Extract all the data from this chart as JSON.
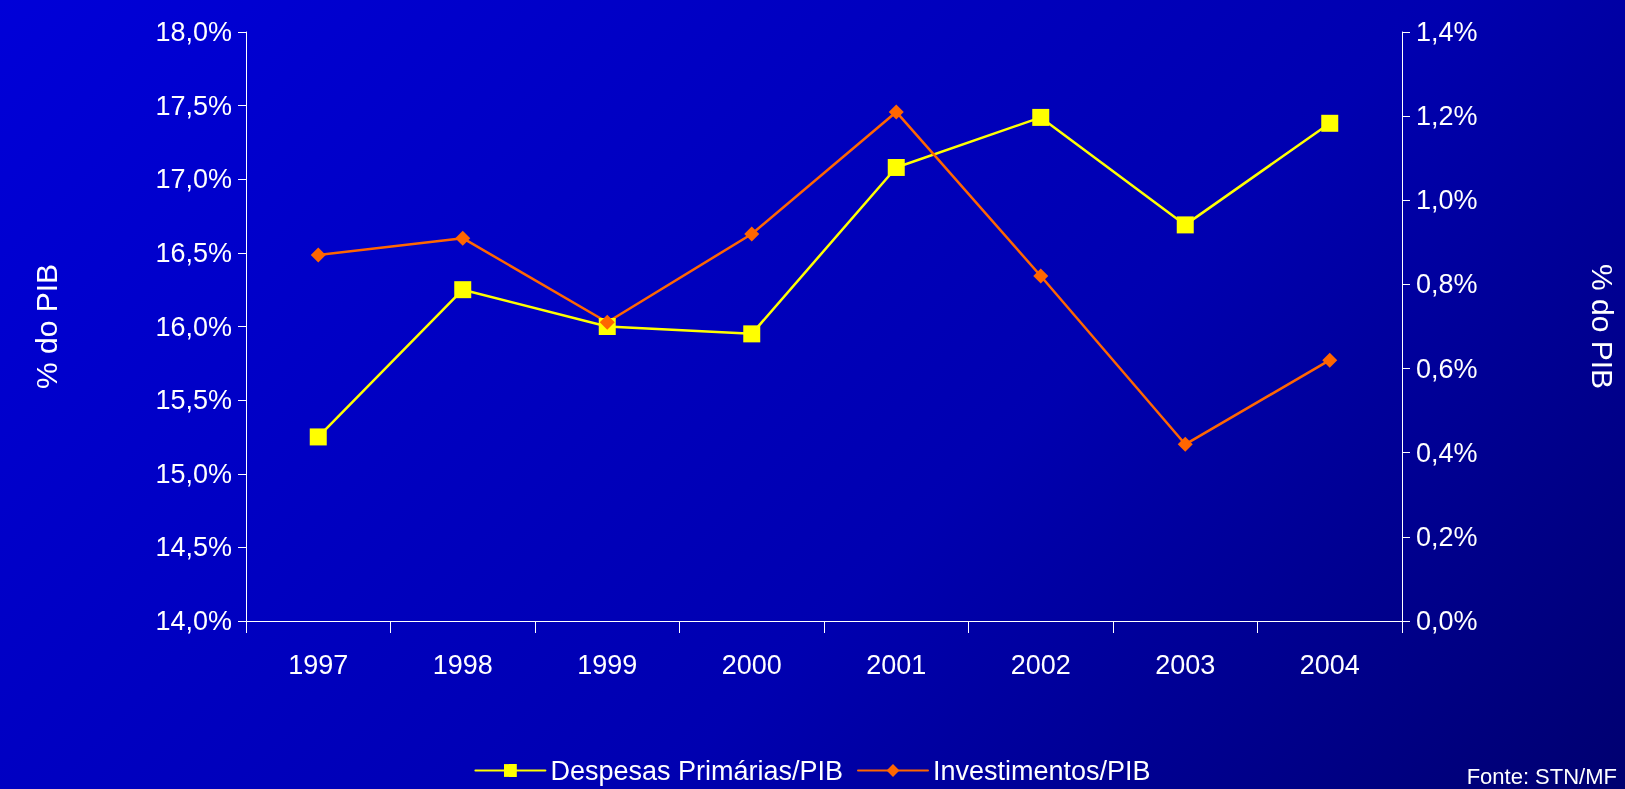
{
  "chart_data": {
    "type": "line",
    "ylabel": "% do PIB",
    "y2label": "% do PIB",
    "categories": [
      "1997",
      "1998",
      "1999",
      "2000",
      "2001",
      "2002",
      "2003",
      "2004"
    ],
    "series": [
      {
        "name": "Despesas Primárias/PIB",
        "color": "#ffff00",
        "marker": "square",
        "values": [
          15.25,
          16.25,
          16.0,
          15.95,
          17.08,
          17.42,
          16.69,
          17.38
        ]
      },
      {
        "name": "Investimentos/PIB",
        "color": "#ff6600",
        "marker": "diamond",
        "axis": "y2",
        "values": [
          0.87,
          0.91,
          0.71,
          0.92,
          1.21,
          0.82,
          0.42,
          0.62
        ]
      }
    ],
    "ylim": [
      14,
      18
    ],
    "yticks": [
      {
        "value": 14,
        "label": "14,0%"
      },
      {
        "value": 14.5,
        "label": "14,5%"
      },
      {
        "value": 15,
        "label": "15,0%"
      },
      {
        "value": 15.5,
        "label": "15,5%"
      },
      {
        "value": 16,
        "label": "16,0%"
      },
      {
        "value": 16.5,
        "label": "16,5%"
      },
      {
        "value": 17,
        "label": "17,0%"
      },
      {
        "value": 17.5,
        "label": "17,5%"
      },
      {
        "value": 18,
        "label": "18,0%"
      }
    ],
    "y2lim": [
      0,
      1.4
    ],
    "y2ticks": [
      {
        "value": 0,
        "label": "0,0%"
      },
      {
        "value": 0.2,
        "label": "0,2%"
      },
      {
        "value": 0.4,
        "label": "0,4%"
      },
      {
        "value": 0.6,
        "label": "0,6%"
      },
      {
        "value": 0.8,
        "label": "0,8%"
      },
      {
        "value": 1.0,
        "label": "1,0%"
      },
      {
        "value": 1.2,
        "label": "1,2%"
      },
      {
        "value": 1.4,
        "label": "1,4%"
      }
    ],
    "grid": false,
    "legend": "bottom",
    "line_style": "solid",
    "annotations": [
      "Fonte: STN/MF"
    ]
  }
}
